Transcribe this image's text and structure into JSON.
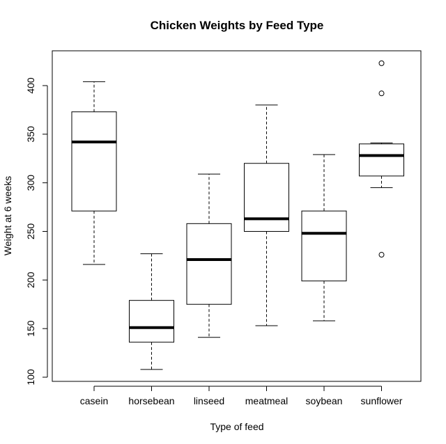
{
  "chart_data": {
    "type": "boxplot",
    "title": "Chicken Weights by Feed Type",
    "xlabel": "Type of feed",
    "ylabel": "Weight at 6 weeks",
    "ylim": [
      100,
      425
    ],
    "yticks": [
      100,
      150,
      200,
      250,
      300,
      350,
      400
    ],
    "grid": false,
    "legend": "none",
    "categories": [
      "casein",
      "horsebean",
      "linseed",
      "meatmeal",
      "soybean",
      "sunflower"
    ],
    "boxes": [
      {
        "category": "casein",
        "whisker_low": 216,
        "q1": 271,
        "median": 342,
        "q3": 373,
        "whisker_high": 404,
        "outliers": []
      },
      {
        "category": "horsebean",
        "whisker_low": 108,
        "q1": 136,
        "median": 151,
        "q3": 179,
        "whisker_high": 227,
        "outliers": []
      },
      {
        "category": "linseed",
        "whisker_low": 141,
        "q1": 175,
        "median": 221,
        "q3": 258,
        "whisker_high": 309,
        "outliers": []
      },
      {
        "category": "meatmeal",
        "whisker_low": 153,
        "q1": 250,
        "median": 263,
        "q3": 320,
        "whisker_high": 380,
        "outliers": []
      },
      {
        "category": "soybean",
        "whisker_low": 158,
        "q1": 199,
        "median": 248,
        "q3": 271,
        "whisker_high": 329,
        "outliers": []
      },
      {
        "category": "sunflower",
        "whisker_low": 295,
        "q1": 307,
        "median": 328,
        "q3": 340,
        "whisker_high": 341,
        "outliers": [
          423,
          392,
          226
        ]
      }
    ]
  }
}
